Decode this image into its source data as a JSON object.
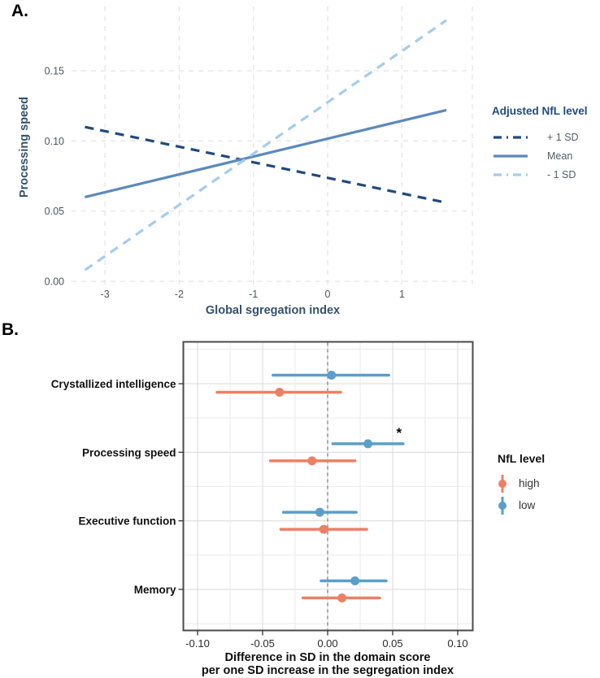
{
  "figure": {
    "panel_a_label": "A.",
    "panel_b_label": "B."
  },
  "palette": {
    "background": "#FFFFFF",
    "grid_dashed_a": "#E3E3E3",
    "grid_major_b": "#DBDBDB",
    "grid_minor_b": "#ECECEC",
    "panel_border_b": "#4A4A4A",
    "zero_line_b": "#909090",
    "axis_title_a": "#35506C",
    "tick_label_a": "#4A5560",
    "legend_title_a": "#1F4A7D",
    "tick_label_b": "#2B2B2B",
    "category_label_b": "#111111",
    "navy": "#1F4A7D",
    "steel_blue": "#5B89BF",
    "light_blue": "#A3CCEF",
    "orange_high": "#ED8064",
    "blue_low": "#5B9EC9"
  },
  "chart_data": [
    {
      "id": "panel_a",
      "type": "line",
      "xlabel": "Global sgregation index",
      "ylabel": "Processing speed",
      "x_ticks": [
        -3,
        -2,
        -1,
        0,
        1
      ],
      "x_tick_labels": [
        "-3",
        "-2",
        "-1",
        "0",
        "1"
      ],
      "y_ticks": [
        0.0,
        0.05,
        0.1,
        0.15
      ],
      "y_tick_labels": [
        "0.00",
        "0.05",
        "0.10",
        "0.15"
      ],
      "xlim": [
        -3.45,
        1.95
      ],
      "ylim": [
        -0.005,
        0.195
      ],
      "grid": "dashed both axes",
      "legend": {
        "title": "Adjusted NfL level",
        "position": "right",
        "items": [
          {
            "label": "+ 1 SD",
            "color": "#1F4A7D",
            "dash": "dashed"
          },
          {
            "label": "Mean",
            "color": "#5B89BF",
            "dash": "solid"
          },
          {
            "label": "- 1 SD",
            "color": "#A3CCEF",
            "dash": "dashed"
          }
        ]
      },
      "series": [
        {
          "name": "+ 1 SD",
          "color": "#1F4A7D",
          "style": "dashed",
          "x": [
            -3.27,
            1.6
          ],
          "y": [
            0.11,
            0.056
          ]
        },
        {
          "name": "Mean",
          "color": "#5B89BF",
          "style": "solid",
          "x": [
            -3.27,
            1.6
          ],
          "y": [
            0.06,
            0.122
          ]
        },
        {
          "name": "- 1 SD",
          "color": "#A3CCEF",
          "style": "dashed",
          "x": [
            -3.27,
            1.6
          ],
          "y": [
            0.008,
            0.186
          ]
        }
      ]
    },
    {
      "id": "panel_b",
      "type": "pointrange",
      "xlabel_line1": "Difference in SD in the domain score",
      "xlabel_line2": "per one SD increase in the segregation index",
      "categories": [
        "Crystallized intelligence",
        "Processing speed",
        "Executive function",
        "Memory"
      ],
      "x_ticks": [
        -0.1,
        -0.05,
        0.0,
        0.05,
        0.1
      ],
      "x_tick_labels": [
        "-0.10",
        "-0.05",
        "0.00",
        "0.05",
        "0.10"
      ],
      "xlim": [
        -0.112,
        0.112
      ],
      "zero_line": 0,
      "significance_marker": "*",
      "legend": {
        "title": "NfL level",
        "position": "right",
        "items": [
          {
            "label": "high",
            "color": "#ED8064"
          },
          {
            "label": "low",
            "color": "#5B9EC9"
          }
        ]
      },
      "series": [
        {
          "name": "low",
          "color": "#5B9EC9",
          "row_offset": "above",
          "points": [
            {
              "category": "Crystallized intelligence",
              "estimate": 0.003,
              "ci_low": -0.042,
              "ci_high": 0.047,
              "sig": ""
            },
            {
              "category": "Processing speed",
              "estimate": 0.031,
              "ci_low": 0.004,
              "ci_high": 0.058,
              "sig": "*"
            },
            {
              "category": "Executive function",
              "estimate": -0.006,
              "ci_low": -0.034,
              "ci_high": 0.022,
              "sig": ""
            },
            {
              "category": "Memory",
              "estimate": 0.021,
              "ci_low": -0.005,
              "ci_high": 0.045,
              "sig": ""
            }
          ]
        },
        {
          "name": "high",
          "color": "#ED8064",
          "row_offset": "below",
          "points": [
            {
              "category": "Crystallized intelligence",
              "estimate": -0.037,
              "ci_low": -0.085,
              "ci_high": 0.01,
              "sig": ""
            },
            {
              "category": "Processing speed",
              "estimate": -0.012,
              "ci_low": -0.044,
              "ci_high": 0.021,
              "sig": ""
            },
            {
              "category": "Executive function",
              "estimate": -0.003,
              "ci_low": -0.036,
              "ci_high": 0.03,
              "sig": ""
            },
            {
              "category": "Memory",
              "estimate": 0.011,
              "ci_low": -0.019,
              "ci_high": 0.04,
              "sig": ""
            }
          ]
        }
      ]
    }
  ]
}
